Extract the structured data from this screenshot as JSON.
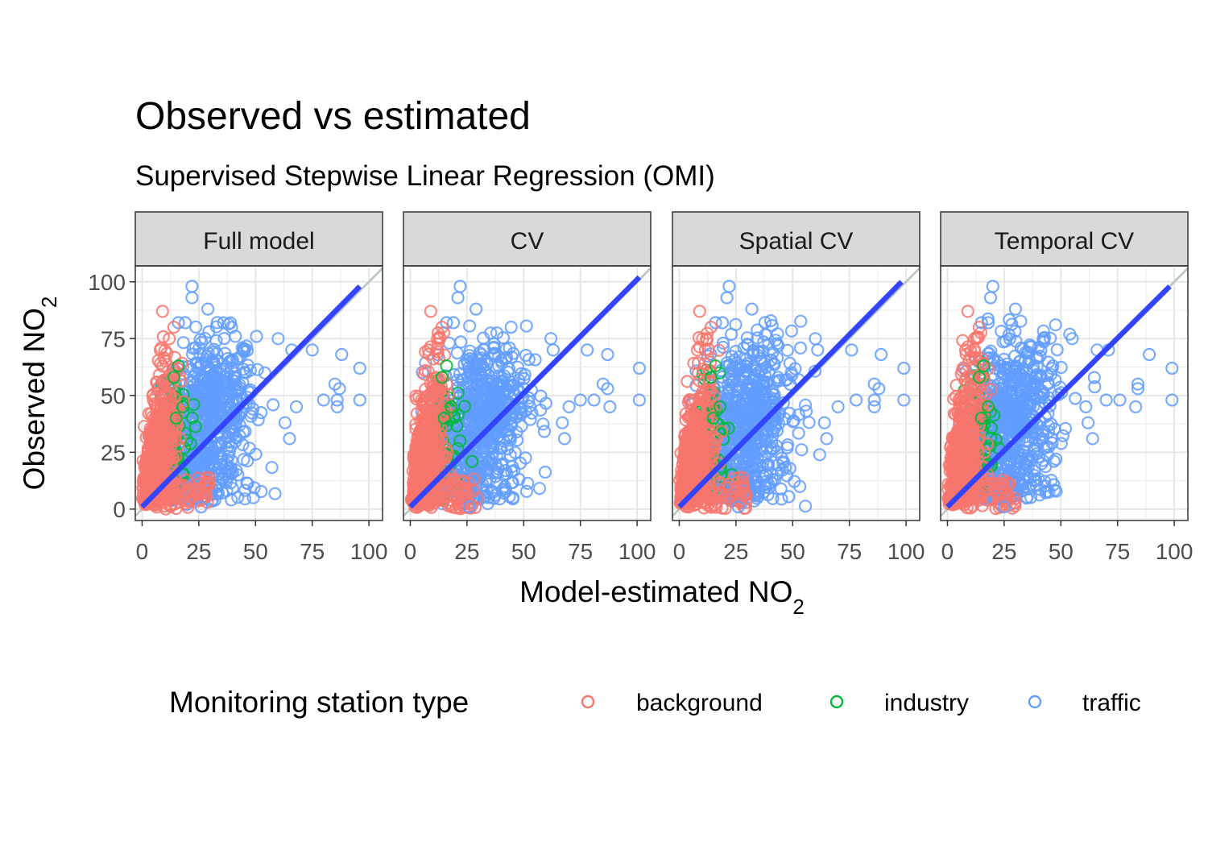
{
  "chart_data": {
    "type": "scatter",
    "title": "Observed vs estimated",
    "subtitle": "Supervised Stepwise Linear Regression (OMI)",
    "xlabel_main": "Model-estimated NO",
    "xlabel_sub": "2",
    "ylabel_main": "Observed NO",
    "ylabel_sub": "2",
    "xlim": [
      -3,
      106
    ],
    "ylim": [
      -5,
      107
    ],
    "x_ticks": [
      0,
      25,
      50,
      75,
      100
    ],
    "y_ticks": [
      0,
      25,
      50,
      75,
      100
    ],
    "x_tick_labels": [
      "0",
      "25",
      "50",
      "75",
      "100"
    ],
    "y_tick_labels": [
      "0",
      "25",
      "50",
      "75",
      "100"
    ],
    "grid": true,
    "identity_line": true,
    "legend": {
      "title": "Monitoring station type",
      "position": "bottom",
      "entries": [
        "background",
        "industry",
        "traffic"
      ]
    },
    "series": [
      {
        "name": "background",
        "color": "#F8766D"
      },
      {
        "name": "industry",
        "color": "#00BA38"
      },
      {
        "name": "traffic",
        "color": "#619CFF"
      }
    ],
    "panels": [
      {
        "label": "Full model",
        "fit_line": {
          "x": [
            0,
            96
          ],
          "y": [
            1,
            98
          ]
        },
        "outliers": {
          "background": [
            [
              9,
              87
            ],
            [
              12,
              75
            ],
            [
              8,
              70
            ],
            [
              5,
              48
            ],
            [
              3,
              42
            ],
            [
              14,
              80
            ]
          ],
          "industry": [
            [
              16,
              63
            ],
            [
              14,
              58
            ],
            [
              18,
              45
            ],
            [
              15,
              40
            ]
          ],
          "traffic": [
            [
              22,
              98
            ],
            [
              22,
              93
            ],
            [
              29,
              88
            ],
            [
              66,
              70
            ],
            [
              75,
              70
            ],
            [
              88,
              68
            ],
            [
              96,
              62
            ],
            [
              85,
              55
            ],
            [
              87,
              53
            ],
            [
              80,
              48
            ],
            [
              86,
              48
            ],
            [
              86,
              45
            ],
            [
              96,
              48
            ],
            [
              68,
              45
            ],
            [
              63,
              38
            ],
            [
              65,
              31
            ],
            [
              26,
              1
            ],
            [
              19,
              82
            ],
            [
              16,
              82
            ],
            [
              60,
              75
            ]
          ]
        }
      },
      {
        "label": "CV",
        "fit_line": {
          "x": [
            0,
            101
          ],
          "y": [
            1,
            102
          ]
        },
        "outliers": {
          "background": [
            [
              9,
              87
            ],
            [
              12,
              75
            ],
            [
              8,
              70
            ],
            [
              5,
              48
            ],
            [
              3,
              42
            ],
            [
              14,
              80
            ]
          ],
          "industry": [
            [
              16,
              63
            ],
            [
              14,
              58
            ],
            [
              18,
              45
            ],
            [
              15,
              40
            ]
          ],
          "traffic": [
            [
              22,
              98
            ],
            [
              21,
              93
            ],
            [
              29,
              88
            ],
            [
              63,
              70
            ],
            [
              78,
              70
            ],
            [
              87,
              68
            ],
            [
              101,
              62
            ],
            [
              85,
              55
            ],
            [
              87,
              53
            ],
            [
              75,
              48
            ],
            [
              81,
              48
            ],
            [
              88,
              45
            ],
            [
              101,
              48
            ],
            [
              70,
              45
            ],
            [
              67,
              38
            ],
            [
              68,
              31
            ],
            [
              26,
              1
            ],
            [
              19,
              82
            ],
            [
              16,
              82
            ],
            [
              62,
              75
            ]
          ]
        }
      },
      {
        "label": "Spatial CV",
        "fit_line": {
          "x": [
            0,
            98
          ],
          "y": [
            1,
            100
          ]
        },
        "outliers": {
          "background": [
            [
              9,
              87
            ],
            [
              12,
              75
            ],
            [
              8,
              70
            ],
            [
              5,
              48
            ],
            [
              3,
              42
            ],
            [
              14,
              80
            ]
          ],
          "industry": [
            [
              16,
              63
            ],
            [
              14,
              58
            ],
            [
              18,
              45
            ],
            [
              15,
              40
            ]
          ],
          "traffic": [
            [
              22,
              98
            ],
            [
              21,
              93
            ],
            [
              32,
              88
            ],
            [
              61,
              70
            ],
            [
              76,
              70
            ],
            [
              89,
              68
            ],
            [
              99,
              62
            ],
            [
              86,
              55
            ],
            [
              88,
              53
            ],
            [
              78,
              48
            ],
            [
              86,
              48
            ],
            [
              86,
              45
            ],
            [
              99,
              48
            ],
            [
              70,
              45
            ],
            [
              64,
              38
            ],
            [
              65,
              31
            ],
            [
              26,
              1
            ],
            [
              19,
              82
            ],
            [
              16,
              82
            ],
            [
              60,
              75
            ]
          ]
        }
      },
      {
        "label": "Temporal CV",
        "fit_line": {
          "x": [
            0,
            98
          ],
          "y": [
            1,
            98
          ]
        },
        "outliers": {
          "background": [
            [
              9,
              87
            ],
            [
              12,
              75
            ],
            [
              8,
              70
            ],
            [
              5,
              48
            ],
            [
              3,
              42
            ],
            [
              14,
              80
            ]
          ],
          "industry": [
            [
              16,
              63
            ],
            [
              14,
              58
            ],
            [
              18,
              45
            ],
            [
              15,
              40
            ]
          ],
          "traffic": [
            [
              20,
              98
            ],
            [
              19,
              93
            ],
            [
              30,
              88
            ],
            [
              66,
              70
            ],
            [
              71,
              70
            ],
            [
              89,
              68
            ],
            [
              99,
              62
            ],
            [
              84,
              55
            ],
            [
              84,
              53
            ],
            [
              70,
              48
            ],
            [
              76,
              48
            ],
            [
              83,
              45
            ],
            [
              99,
              48
            ],
            [
              61,
              45
            ],
            [
              62,
              38
            ],
            [
              64,
              31
            ],
            [
              25,
              1
            ],
            [
              18,
              82
            ],
            [
              15,
              82
            ],
            [
              55,
              75
            ]
          ]
        }
      }
    ]
  }
}
